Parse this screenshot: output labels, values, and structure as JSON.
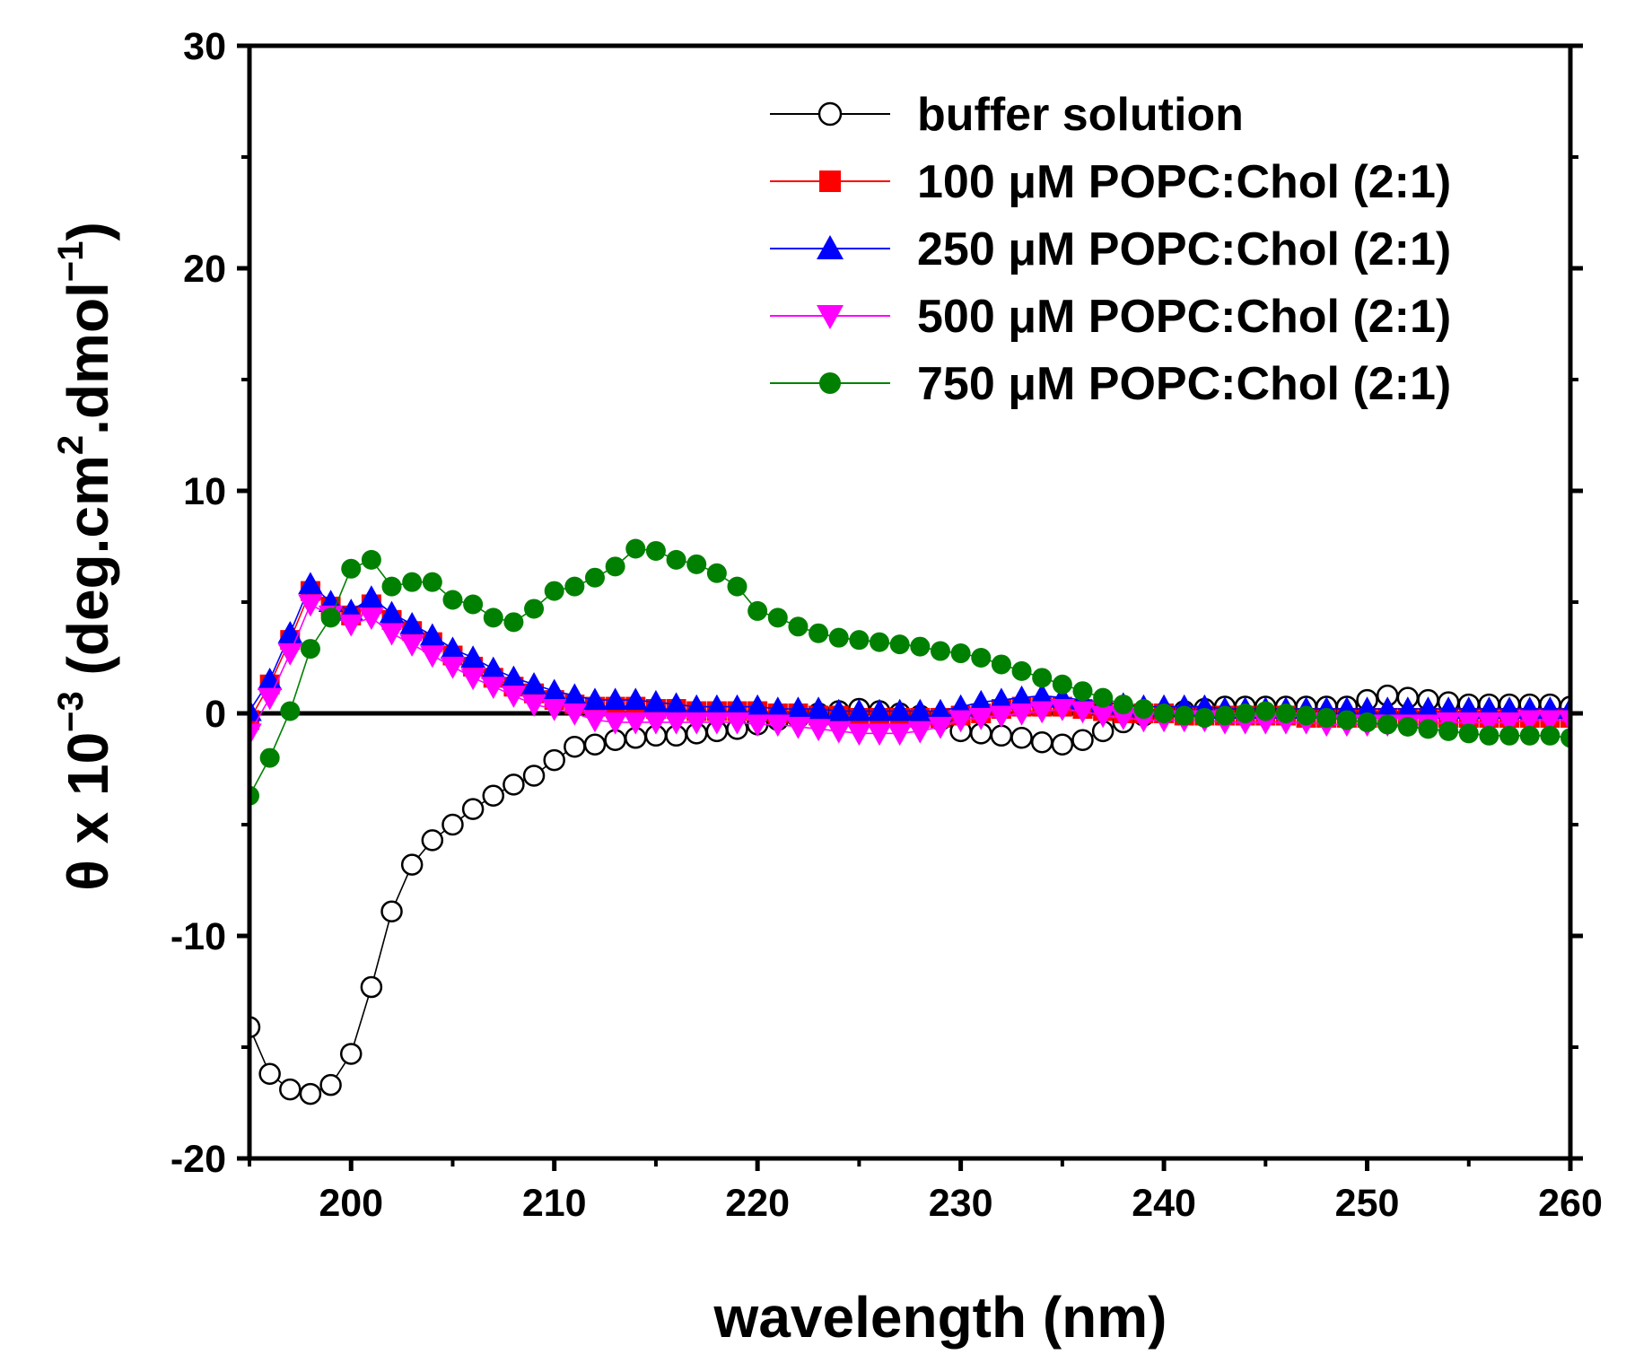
{
  "chart_data": {
    "type": "line",
    "title": "",
    "xlabel": "wavelength (nm)",
    "ylabel": {
      "prefix": "θ x 10",
      "exponent": "−3",
      "middle": " (deg.cm",
      "sup2": "2",
      "after": ".dmol",
      "sup3": "−1",
      "end": ")"
    },
    "xlim": [
      195,
      260
    ],
    "ylim": [
      -20,
      30
    ],
    "xticks": [
      200,
      210,
      220,
      230,
      240,
      250,
      260
    ],
    "xtick_labels": [
      "200",
      "210",
      "220",
      "230",
      "240",
      "250",
      "260"
    ],
    "yticks": [
      -20,
      -10,
      0,
      10,
      20,
      30
    ],
    "ytick_labels": [
      "-20",
      "-10",
      "0",
      "10",
      "20",
      "30"
    ],
    "grid": false,
    "legend_position": "top-right",
    "zero_line": 0,
    "x": [
      195,
      196,
      197,
      198,
      199,
      200,
      201,
      202,
      203,
      204,
      205,
      206,
      207,
      208,
      209,
      210,
      211,
      212,
      213,
      214,
      215,
      216,
      217,
      218,
      219,
      220,
      221,
      222,
      223,
      224,
      225,
      226,
      227,
      228,
      229,
      230,
      231,
      232,
      233,
      234,
      235,
      236,
      237,
      238,
      239,
      240,
      241,
      242,
      243,
      244,
      245,
      246,
      247,
      248,
      249,
      250,
      251,
      252,
      253,
      254,
      255,
      256,
      257,
      258,
      259,
      260
    ],
    "series": [
      {
        "name": "buffer solution",
        "color": "#000000",
        "marker": "open-circle",
        "values": [
          -14.1,
          -16.2,
          -16.9,
          -17.1,
          -16.7,
          -15.3,
          -12.3,
          -8.9,
          -6.8,
          -5.7,
          -5.0,
          -4.3,
          -3.7,
          -3.2,
          -2.8,
          -2.1,
          -1.5,
          -1.4,
          -1.2,
          -1.1,
          -1.0,
          -1.0,
          -0.9,
          -0.8,
          -0.7,
          -0.5,
          -0.3,
          -0.2,
          0.0,
          0.1,
          0.2,
          0.1,
          0.0,
          -0.1,
          -0.3,
          -0.8,
          -0.9,
          -1.0,
          -1.1,
          -1.3,
          -1.4,
          -1.2,
          -0.8,
          -0.4,
          -0.1,
          0.0,
          0.1,
          0.2,
          0.3,
          0.3,
          0.3,
          0.3,
          0.3,
          0.3,
          0.3,
          0.6,
          0.8,
          0.7,
          0.6,
          0.5,
          0.4,
          0.4,
          0.4,
          0.4,
          0.4,
          0.3
        ]
      },
      {
        "name": "100 μM POPC:Chol (2:1)",
        "color": "#ff0000",
        "marker": "filled-square",
        "values": [
          -0.3,
          1.3,
          3.3,
          5.5,
          4.8,
          4.4,
          4.9,
          4.2,
          3.7,
          3.2,
          2.6,
          2.1,
          1.6,
          1.2,
          0.9,
          0.6,
          0.4,
          0.3,
          0.3,
          0.3,
          0.2,
          0.2,
          0.1,
          0.1,
          0.1,
          0.1,
          0.0,
          0.0,
          -0.1,
          -0.1,
          -0.2,
          -0.2,
          -0.2,
          -0.2,
          -0.2,
          -0.1,
          0.0,
          0.2,
          0.3,
          0.3,
          0.3,
          0.2,
          0.1,
          0.0,
          0.0,
          0.0,
          -0.1,
          -0.1,
          -0.1,
          -0.1,
          -0.1,
          -0.1,
          -0.2,
          -0.2,
          -0.2,
          -0.2,
          -0.2,
          -0.2,
          -0.2,
          -0.2,
          -0.2,
          -0.2,
          -0.2,
          -0.2,
          -0.2,
          -0.2
        ]
      },
      {
        "name": "250 μM POPC:Chol (2:1)",
        "color": "#0000ff",
        "marker": "filled-triangle-up",
        "values": [
          0.1,
          1.5,
          3.6,
          5.8,
          5.0,
          4.6,
          5.2,
          4.5,
          4.0,
          3.5,
          2.9,
          2.5,
          2.0,
          1.6,
          1.3,
          1.0,
          0.8,
          0.6,
          0.6,
          0.6,
          0.5,
          0.4,
          0.3,
          0.3,
          0.3,
          0.3,
          0.2,
          0.2,
          0.2,
          0.1,
          0.1,
          0.1,
          0.1,
          0.1,
          0.1,
          0.3,
          0.5,
          0.6,
          0.7,
          0.8,
          0.7,
          0.6,
          0.5,
          0.4,
          0.3,
          0.3,
          0.3,
          0.3,
          0.2,
          0.2,
          0.2,
          0.2,
          0.2,
          0.2,
          0.2,
          0.2,
          0.2,
          0.2,
          0.2,
          0.2,
          0.2,
          0.2,
          0.2,
          0.2,
          0.2,
          0.2
        ]
      },
      {
        "name": "500 μM POPC:Chol (2:1)",
        "color": "#ff00ff",
        "marker": "filled-triangle-down",
        "values": [
          -0.9,
          0.7,
          2.7,
          4.9,
          4.4,
          4.0,
          4.3,
          3.6,
          3.1,
          2.6,
          2.1,
          1.6,
          1.2,
          0.8,
          0.4,
          0.2,
          0.0,
          -0.3,
          -0.4,
          -0.4,
          -0.4,
          -0.4,
          -0.4,
          -0.4,
          -0.4,
          -0.5,
          -0.5,
          -0.6,
          -0.7,
          -0.8,
          -0.9,
          -0.9,
          -0.9,
          -0.8,
          -0.6,
          -0.3,
          -0.2,
          -0.1,
          0.0,
          0.1,
          0.2,
          0.1,
          -0.1,
          -0.2,
          -0.3,
          -0.3,
          -0.3,
          -0.3,
          -0.4,
          -0.4,
          -0.4,
          -0.4,
          -0.4,
          -0.5,
          -0.5,
          -0.5,
          -0.5,
          -0.5,
          -0.5,
          -0.4,
          -0.4,
          -0.4,
          -0.4,
          -0.3,
          -0.3,
          -0.3
        ]
      },
      {
        "name": "750 μM POPC:Chol (2:1)",
        "color": "#008000",
        "marker": "filled-circle",
        "values": [
          -3.7,
          -2.0,
          0.1,
          2.9,
          4.3,
          6.5,
          6.9,
          5.7,
          5.9,
          5.9,
          5.1,
          4.9,
          4.3,
          4.1,
          4.7,
          5.5,
          5.7,
          6.1,
          6.6,
          7.4,
          7.3,
          6.9,
          6.7,
          6.3,
          5.7,
          4.6,
          4.3,
          3.9,
          3.6,
          3.4,
          3.3,
          3.2,
          3.1,
          3.0,
          2.8,
          2.7,
          2.5,
          2.2,
          1.9,
          1.6,
          1.3,
          1.0,
          0.7,
          0.4,
          0.2,
          0.0,
          -0.1,
          -0.2,
          -0.1,
          0.0,
          0.1,
          0.0,
          -0.1,
          -0.2,
          -0.3,
          -0.4,
          -0.5,
          -0.6,
          -0.7,
          -0.8,
          -0.9,
          -1.0,
          -1.0,
          -1.0,
          -1.0,
          -1.1
        ]
      }
    ]
  }
}
